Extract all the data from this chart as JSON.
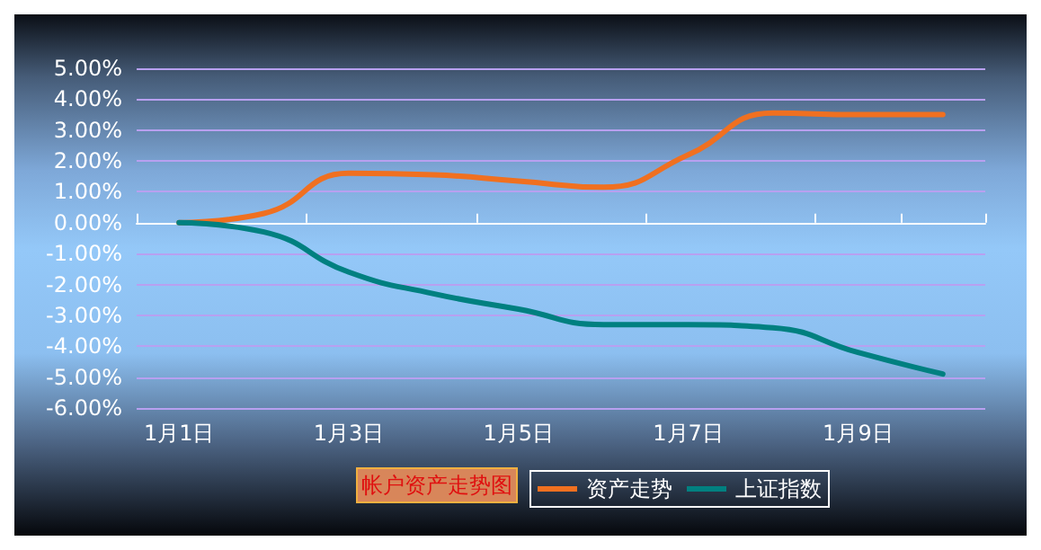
{
  "chart_data": {
    "type": "line",
    "title": "帐户资产走势图",
    "categories": [
      "1月1日",
      null,
      "1月3日",
      null,
      "1月5日",
      null,
      "1月7日",
      null,
      "1月9日",
      null
    ],
    "series": [
      {
        "name": "资产走势",
        "color": "#f07020",
        "values": [
          0,
          0.3,
          1.6,
          1.55,
          1.35,
          1.15,
          2.2,
          3.55,
          3.5,
          3.5
        ]
      },
      {
        "name": "上证指数",
        "color": "#008080",
        "values": [
          0,
          -0.3,
          -1.6,
          -2.3,
          -2.8,
          -3.3,
          -3.3,
          -3.4,
          -4.2,
          -4.9
        ]
      }
    ],
    "ylim": [
      -6,
      5
    ],
    "yticks": [
      {
        "value": -6,
        "label": "-6.00%"
      },
      {
        "value": -5,
        "label": "-5.00%"
      },
      {
        "value": -4,
        "label": "-4.00%"
      },
      {
        "value": -3,
        "label": "-3.00%"
      },
      {
        "value": -2,
        "label": "-2.00%"
      },
      {
        "value": -1,
        "label": "-1.00%"
      },
      {
        "value": 0,
        "label": "0.00%"
      },
      {
        "value": 1,
        "label": "1.00%"
      },
      {
        "value": 2,
        "label": "2.00%"
      },
      {
        "value": 3,
        "label": "3.00%"
      },
      {
        "value": 4,
        "label": "4.00%"
      },
      {
        "value": 5,
        "label": "5.00%"
      }
    ],
    "grid": "y",
    "legend": "bottom",
    "marker": "none",
    "line_style": "solid"
  }
}
